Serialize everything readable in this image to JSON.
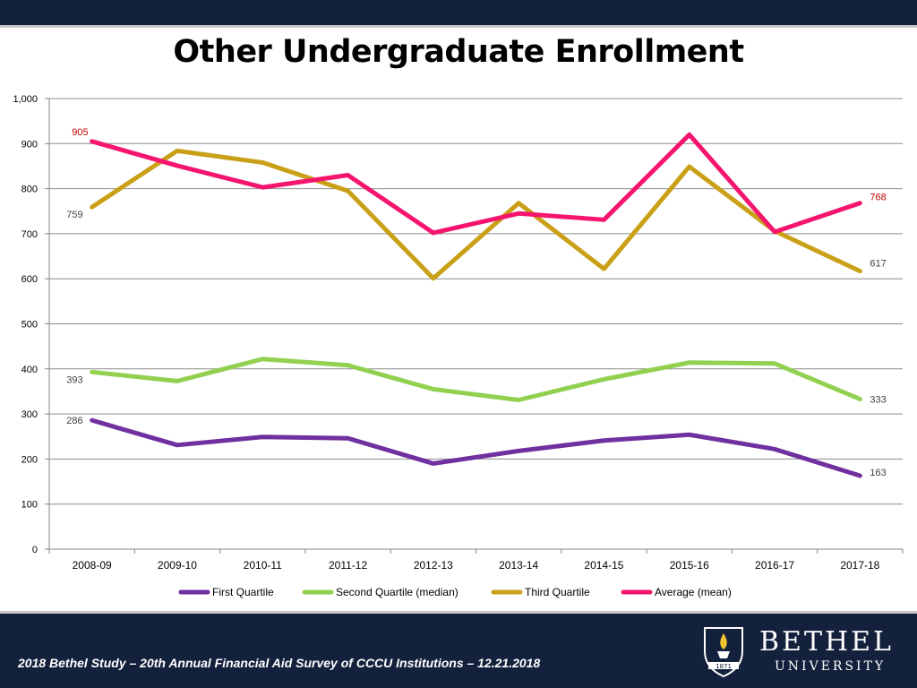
{
  "title": "Other Undergraduate Enrollment",
  "footer": {
    "text": "2018 Bethel Study – 20th Annual Financial Aid Survey of CCCU Institutions – 12.21.2018",
    "logo_name": "BETHEL",
    "logo_sub": "UNIVERSITY",
    "logo_year": "1871"
  },
  "chart_data": {
    "type": "line",
    "title": "Other Undergraduate Enrollment",
    "categories": [
      "2008-09",
      "2009-10",
      "2010-11",
      "2011-12",
      "2012-13",
      "2013-14",
      "2014-15",
      "2015-16",
      "2016-17",
      "2017-18"
    ],
    "ylim": [
      0,
      1000
    ],
    "yticks": [
      0,
      100,
      200,
      300,
      400,
      500,
      600,
      700,
      800,
      900,
      1000
    ],
    "ytick_labels": [
      "0",
      "100",
      "200",
      "300",
      "400",
      "500",
      "600",
      "700",
      "800",
      "900",
      "1,000"
    ],
    "grid": true,
    "legend_position": "bottom",
    "series": [
      {
        "name": "First Quartile",
        "color": "#7030a0",
        "values": [
          286,
          231,
          249,
          246,
          190,
          218,
          241,
          254,
          222,
          163
        ],
        "labels": [
          "286",
          "",
          "",
          "",
          "",
          "",
          "",
          "",
          "",
          "163"
        ],
        "label_color": "#404040"
      },
      {
        "name": "Second Quartile (median)",
        "color": "#92d050",
        "values": [
          393,
          373,
          422,
          408,
          355,
          331,
          377,
          414,
          412,
          333
        ],
        "labels": [
          "393",
          "",
          "",
          "",
          "",
          "",
          "",
          "",
          "",
          "333"
        ],
        "label_color": "#404040"
      },
      {
        "name": "Third Quartile",
        "color": "#c9a017",
        "values": [
          759,
          884,
          858,
          795,
          601,
          768,
          622,
          849,
          706,
          617
        ],
        "labels": [
          "759",
          "",
          "",
          "",
          "",
          "",
          "",
          "",
          "",
          "617"
        ],
        "label_color": "#404040"
      },
      {
        "name": "Average (mean)",
        "color": "#f5156e",
        "values": [
          905,
          851,
          803,
          830,
          702,
          745,
          731,
          920,
          704,
          768
        ],
        "labels": [
          "905",
          "",
          "",
          "",
          "",
          "",
          "",
          "",
          "",
          "768"
        ],
        "label_color": "#c00000"
      }
    ]
  }
}
